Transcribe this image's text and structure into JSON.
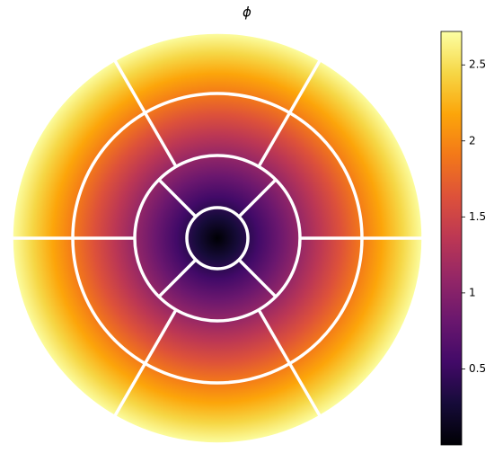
{
  "chart_data": {
    "type": "polar-heatmap",
    "title": "ϕ",
    "colormap": "inferno",
    "clim": [
      0,
      2.72
    ],
    "cticks": [
      0.5,
      1.0,
      1.5,
      2.0,
      2.5
    ]
  }
}
